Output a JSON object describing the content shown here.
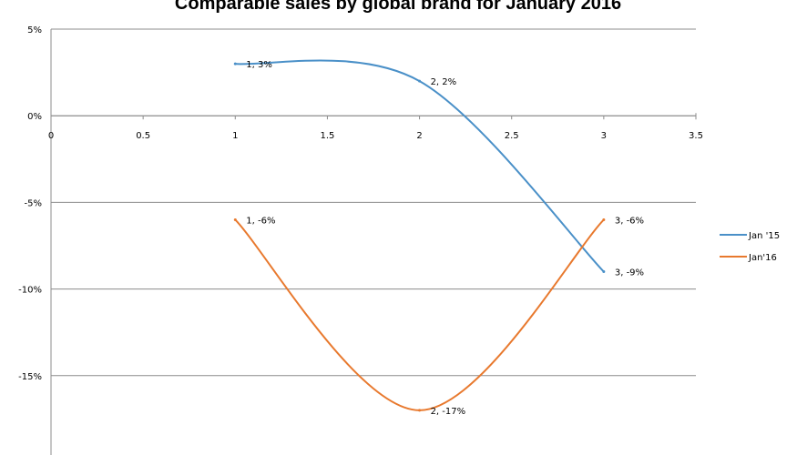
{
  "chart_data": {
    "type": "line",
    "title": "Comparable sales by global brand for January 2016",
    "xlabel": "",
    "ylabel": "",
    "xlim": [
      0,
      3.5
    ],
    "ylim": [
      -20,
      5
    ],
    "x_ticks": [
      0,
      0.5,
      1,
      1.5,
      2,
      2.5,
      3,
      3.5
    ],
    "x_tick_labels": [
      "0",
      "0.5",
      "1",
      "1.5",
      "2",
      "2.5",
      "3",
      "3.5"
    ],
    "y_ticks": [
      5,
      0,
      -5,
      -10,
      -15
    ],
    "y_tick_labels": [
      "5%",
      "0%",
      "-5%",
      "-10%",
      "-15%"
    ],
    "grid": true,
    "smooth": true,
    "legend_position": "right",
    "series": [
      {
        "name": "Jan '15",
        "color": "#4a90c8",
        "x": [
          1,
          2,
          3
        ],
        "values": [
          3,
          2,
          -9
        ],
        "labels": [
          "1, 3%",
          "2, 2%",
          "3, -9%"
        ]
      },
      {
        "name": "Jan'16",
        "color": "#e8792e",
        "x": [
          1,
          2,
          3
        ],
        "values": [
          -6,
          -17,
          -6
        ],
        "labels": [
          "1, -6%",
          "2, -17%",
          "3, -6%"
        ]
      }
    ]
  }
}
